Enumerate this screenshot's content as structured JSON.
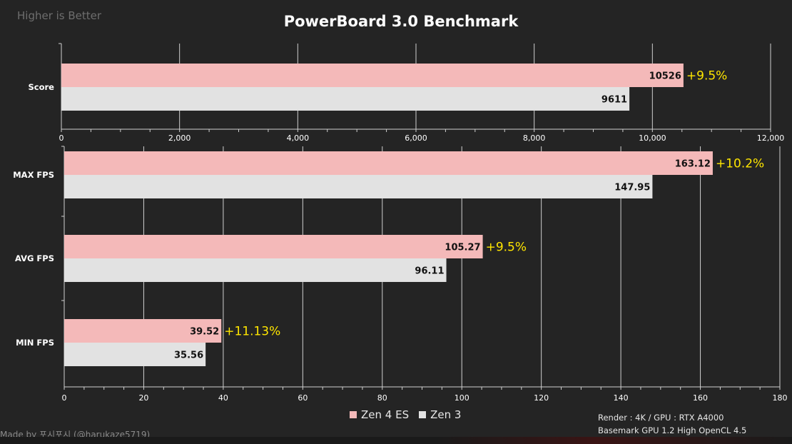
{
  "header": {
    "corner_note": "Higher is Better",
    "title": "PowerBoard 3.0 Benchmark"
  },
  "colors": {
    "background": "#242424",
    "zen4": "#f4b9b9",
    "zen3": "#e2e2e2",
    "delta": "#ffe600",
    "grid": "#cfcfcf",
    "axis_text": "#ffffff"
  },
  "chart_data": [
    {
      "type": "bar",
      "orientation": "horizontal",
      "title": "",
      "xlabel": "",
      "ylabel": "",
      "xlim": [
        0,
        12000
      ],
      "xticks": [
        0,
        2000,
        4000,
        6000,
        8000,
        10000,
        12000
      ],
      "xtick_labels": [
        "0",
        "2,000",
        "4,000",
        "6,000",
        "8,000",
        "10,000",
        "12,000"
      ],
      "categories": [
        "Score"
      ],
      "series": [
        {
          "name": "Zen 4 ES",
          "values": [
            10526
          ],
          "labels": [
            "10526"
          ]
        },
        {
          "name": "Zen 3",
          "values": [
            9611
          ],
          "labels": [
            "9611"
          ]
        }
      ],
      "annotations": [
        "+9.5%"
      ],
      "grid": true
    },
    {
      "type": "bar",
      "orientation": "horizontal",
      "title": "",
      "xlabel": "",
      "ylabel": "",
      "xlim": [
        0,
        180
      ],
      "xticks": [
        0,
        20,
        40,
        60,
        80,
        100,
        120,
        140,
        160,
        180
      ],
      "xtick_labels": [
        "0",
        "20",
        "40",
        "60",
        "80",
        "100",
        "120",
        "140",
        "160",
        "180"
      ],
      "categories": [
        "MAX FPS",
        "AVG FPS",
        "MIN FPS"
      ],
      "series": [
        {
          "name": "Zen 4 ES",
          "values": [
            163.12,
            105.27,
            39.52
          ],
          "labels": [
            "163.12",
            "105.27",
            "39.52"
          ]
        },
        {
          "name": "Zen 3",
          "values": [
            147.95,
            96.11,
            35.56
          ],
          "labels": [
            "147.95",
            "96.11",
            "35.56"
          ]
        }
      ],
      "annotations": [
        "+10.2%",
        "+9.5%",
        "+11.13%"
      ],
      "grid": true
    }
  ],
  "legend": {
    "items": [
      {
        "label": "Zen 4 ES",
        "color": "#f4b9b9"
      },
      {
        "label": "Zen 3",
        "color": "#e2e2e2"
      }
    ],
    "placement": "bottom-center"
  },
  "footnote": {
    "line1": "Render : 4K / GPU : RTX A4000",
    "line2": "Basemark GPU 1.2 High OpenCL 4.5"
  },
  "credit": "Made by 포시포시 (@harukaze5719)"
}
